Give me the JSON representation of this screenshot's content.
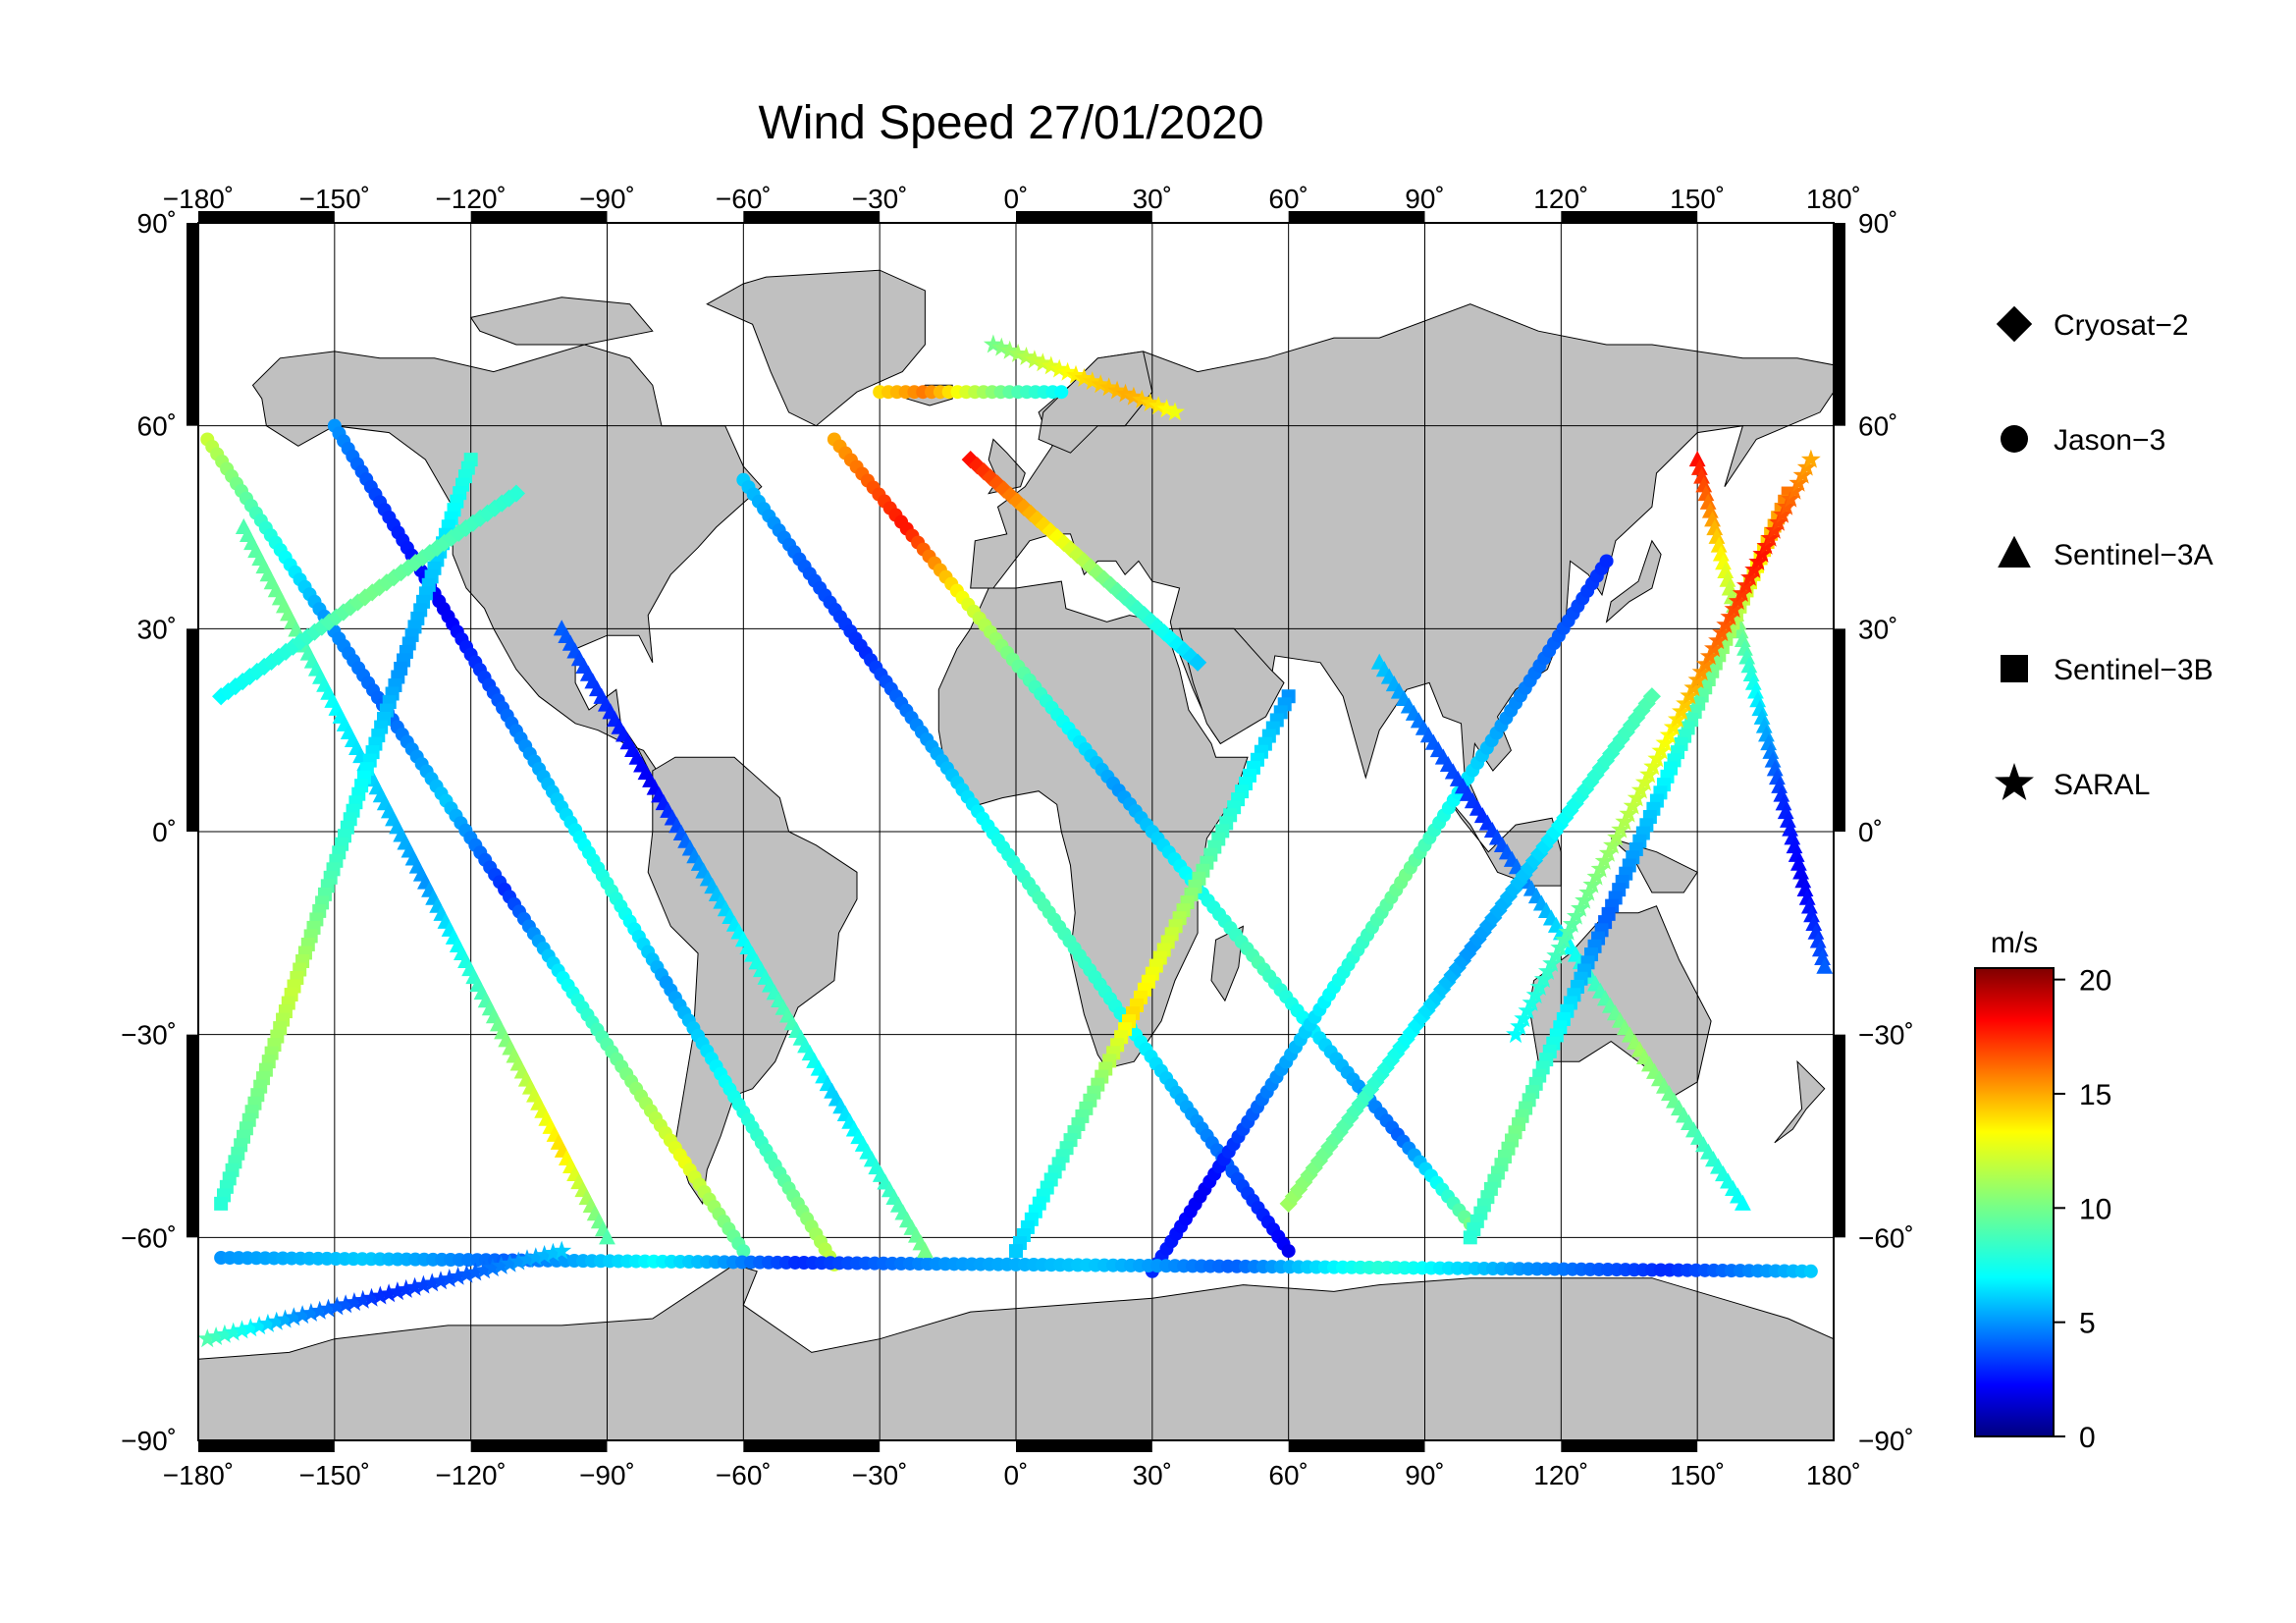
{
  "title": "Wind Speed 27/01/2020",
  "map": {
    "projection": "equirectangular",
    "lon_range": [
      -180,
      180
    ],
    "lat_range": [
      -90,
      90
    ],
    "land_color": "#c0c0c0",
    "ocean_color": "#ffffff",
    "grid": true
  },
  "axes": {
    "lon_ticks": [
      "−180˚",
      "−150˚",
      "−120˚",
      "−90˚",
      "−60˚",
      "−30˚",
      "0˚",
      "30˚",
      "60˚",
      "90˚",
      "120˚",
      "150˚",
      "180˚"
    ],
    "lon_values": [
      -180,
      -150,
      -120,
      -90,
      -60,
      -30,
      0,
      30,
      60,
      90,
      120,
      150,
      180
    ],
    "lat_ticks": [
      "90˚",
      "60˚",
      "30˚",
      "0˚",
      "−30˚",
      "−60˚",
      "−90˚"
    ],
    "lat_values": [
      90,
      60,
      30,
      0,
      -30,
      -60,
      -90
    ]
  },
  "legend": {
    "items": [
      {
        "label": "Cryosat−2",
        "marker": "diamond"
      },
      {
        "label": "Jason−3",
        "marker": "circle"
      },
      {
        "label": "Sentinel−3A",
        "marker": "triangle"
      },
      {
        "label": "Sentinel−3B",
        "marker": "square"
      },
      {
        "label": "SARAL",
        "marker": "star"
      }
    ]
  },
  "colorbar": {
    "unit": "m/s",
    "min": 0,
    "max": 20.5,
    "ticks": [
      "20",
      "15",
      "10",
      "5",
      "0"
    ],
    "tick_values": [
      20,
      15,
      10,
      5,
      0
    ],
    "colormap": "jet"
  },
  "chart_data": {
    "type": "scatter",
    "title": "Wind Speed 27/01/2020",
    "value_unit": "m/s",
    "series": [
      {
        "name": "Jason−3",
        "marker": "circle",
        "tracks": [
          {
            "from": [
              -178,
              58
            ],
            "to": [
              -60,
              -62
            ],
            "speeds": [
              12,
              8,
              5,
              4,
              6,
              3,
              7,
              10,
              13,
              9
            ]
          },
          {
            "from": [
              -150,
              60
            ],
            "to": [
              -40,
              -64
            ],
            "speeds": [
              5,
              3,
              2,
              4,
              6,
              8,
              5,
              7,
              9,
              12
            ]
          },
          {
            "from": [
              -60,
              52
            ],
            "to": [
              60,
              -62
            ],
            "speeds": [
              6,
              4,
              3,
              5,
              7,
              9,
              8,
              6,
              4,
              2
            ]
          },
          {
            "from": [
              -40,
              58
            ],
            "to": [
              100,
              -58
            ],
            "speeds": [
              15,
              18,
              12,
              8,
              5,
              7,
              9,
              6,
              4,
              10
            ]
          },
          {
            "from": [
              30,
              -65
            ],
            "to": [
              130,
              40
            ],
            "speeds": [
              3,
              2,
              4,
              6,
              8,
              10,
              7,
              5,
              4,
              3
            ]
          },
          {
            "from": [
              -30,
              65
            ],
            "to": [
              10,
              65
            ],
            "speeds": [
              14,
              16,
              12,
              9,
              7
            ]
          },
          {
            "from": [
              -175,
              -63
            ],
            "to": [
              175,
              -65
            ],
            "speeds": [
              5,
              6,
              4,
              7,
              3,
              5,
              6,
              4,
              8,
              5,
              3,
              6
            ]
          }
        ]
      },
      {
        "name": "Sentinel−3A",
        "marker": "triangle",
        "tracks": [
          {
            "from": [
              -170,
              45
            ],
            "to": [
              -90,
              -60
            ],
            "speeds": [
              9,
              10,
              7,
              6,
              5,
              8,
              11,
              14,
              9
            ]
          },
          {
            "from": [
              -100,
              30
            ],
            "to": [
              -20,
              -62
            ],
            "speeds": [
              4,
              3,
              2,
              5,
              7,
              9,
              6,
              8,
              10
            ]
          },
          {
            "from": [
              80,
              25
            ],
            "to": [
              160,
              -55
            ],
            "speeds": [
              6,
              4,
              3,
              5,
              8,
              11,
              9,
              7
            ]
          },
          {
            "from": [
              150,
              55
            ],
            "to": [
              178,
              -20
            ],
            "speeds": [
              18,
              14,
              10,
              6,
              3,
              2,
              4
            ]
          }
        ]
      },
      {
        "name": "Sentinel−3B",
        "marker": "square",
        "tracks": [
          {
            "from": [
              -120,
              55
            ],
            "to": [
              -175,
              -55
            ],
            "speeds": [
              8,
              6,
              5,
              7,
              9,
              12,
              10,
              8
            ]
          },
          {
            "from": [
              60,
              20
            ],
            "to": [
              0,
              -62
            ],
            "speeds": [
              5,
              7,
              9,
              12,
              14,
              10,
              8,
              6
            ]
          },
          {
            "from": [
              170,
              50
            ],
            "to": [
              100,
              -60
            ],
            "speeds": [
              16,
              12,
              9,
              6,
              4,
              7,
              10,
              8
            ]
          }
        ]
      },
      {
        "name": "Cryosat−2",
        "marker": "diamond",
        "tracks": [
          {
            "from": [
              -175,
              20
            ],
            "to": [
              -110,
              50
            ],
            "speeds": [
              7,
              8,
              10,
              9,
              8
            ]
          },
          {
            "from": [
              60,
              -55
            ],
            "to": [
              140,
              20
            ],
            "speeds": [
              11,
              9,
              7,
              5,
              6,
              8,
              9
            ]
          },
          {
            "from": [
              -10,
              55
            ],
            "to": [
              40,
              25
            ],
            "speeds": [
              18,
              14,
              9,
              6
            ]
          }
        ]
      },
      {
        "name": "SARAL",
        "marker": "star",
        "tracks": [
          {
            "from": [
              -178,
              -75
            ],
            "to": [
              -100,
              -62
            ],
            "speeds": [
              9,
              5,
              3,
              4,
              6
            ]
          },
          {
            "from": [
              -5,
              72
            ],
            "to": [
              35,
              62
            ],
            "speeds": [
              10,
              12,
              14,
              15,
              13
            ]
          },
          {
            "from": [
              110,
              -30
            ],
            "to": [
              175,
              55
            ],
            "speeds": [
              7,
              9,
              11,
              13,
              16,
              18,
              15
            ]
          }
        ]
      }
    ]
  }
}
